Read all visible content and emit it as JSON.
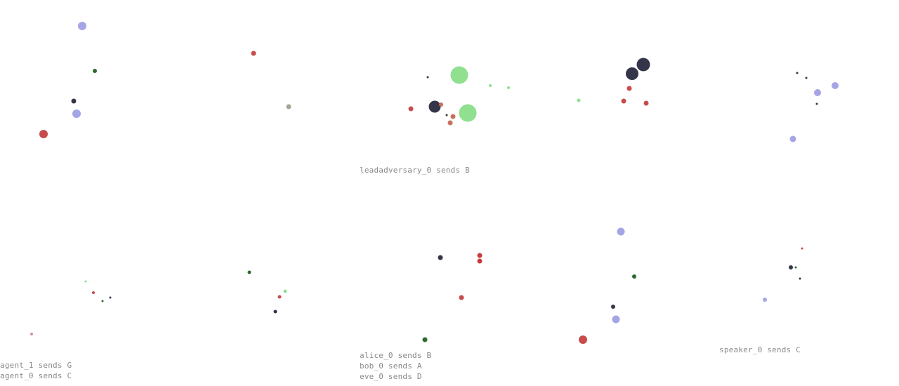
{
  "panels": [
    {
      "name": "panel-top-1",
      "messages": [],
      "entities": [
        {
          "kind": "agent",
          "color": "#a5a5e6"
        },
        {
          "kind": "landmark",
          "color": "#2e6b2e"
        },
        {
          "kind": "adversary",
          "color": "#35354a"
        },
        {
          "kind": "agent",
          "color": "#a5a5e6"
        },
        {
          "kind": "adversary",
          "color": "#c84c4c"
        }
      ]
    },
    {
      "name": "panel-top-2",
      "messages": [],
      "entities": [
        {
          "kind": "landmark",
          "color": "#c84c4c"
        },
        {
          "kind": "landmark",
          "color": "#a0a890"
        }
      ]
    },
    {
      "name": "panel-top-3",
      "messages": [
        "leadadversary_0 sends B"
      ],
      "entities": [
        {
          "kind": "landmark",
          "color": "#35354a"
        },
        {
          "kind": "food",
          "color": "#90e090"
        },
        {
          "kind": "food",
          "color": "#90e090"
        },
        {
          "kind": "food",
          "color": "#90e090"
        },
        {
          "kind": "adversary",
          "color": "#c84c4c"
        },
        {
          "kind": "adversary",
          "color": "#35354a"
        },
        {
          "kind": "agent",
          "color": "#c8705a"
        },
        {
          "kind": "landmark",
          "color": "#35354a"
        },
        {
          "kind": "agent",
          "color": "#c8705a"
        },
        {
          "kind": "agent",
          "color": "#c8705a"
        },
        {
          "kind": "food",
          "color": "#90e090"
        }
      ]
    },
    {
      "name": "panel-top-4",
      "messages": [],
      "entities": [
        {
          "kind": "adversary",
          "color": "#35354a"
        },
        {
          "kind": "adversary",
          "color": "#35354a"
        },
        {
          "kind": "agent",
          "color": "#c84c4c"
        },
        {
          "kind": "food",
          "color": "#90e090"
        },
        {
          "kind": "agent",
          "color": "#c84c4c"
        },
        {
          "kind": "agent",
          "color": "#c84c4c"
        }
      ]
    },
    {
      "name": "panel-top-5",
      "messages": [],
      "entities": [
        {
          "kind": "landmark",
          "color": "#35354a"
        },
        {
          "kind": "landmark",
          "color": "#35354a"
        },
        {
          "kind": "agent",
          "color": "#a5a5e6"
        },
        {
          "kind": "agent",
          "color": "#a5a5e6"
        },
        {
          "kind": "landmark",
          "color": "#35354a"
        },
        {
          "kind": "agent",
          "color": "#a5a5e6"
        }
      ]
    },
    {
      "name": "panel-bottom-1",
      "messages": [
        "agent_1 sends G",
        "agent_0 sends C"
      ],
      "entities": [
        {
          "kind": "landmark",
          "color": "#90e090"
        },
        {
          "kind": "agent",
          "color": "#c84c4c"
        },
        {
          "kind": "landmark",
          "color": "#35354a"
        },
        {
          "kind": "landmark",
          "color": "#2e6b2e"
        },
        {
          "kind": "agent",
          "color": "#d090a0"
        }
      ]
    },
    {
      "name": "panel-bottom-2",
      "messages": [],
      "entities": [
        {
          "kind": "landmark",
          "color": "#2e6b2e"
        },
        {
          "kind": "landmark",
          "color": "#90e090"
        },
        {
          "kind": "agent",
          "color": "#c84c4c"
        },
        {
          "kind": "agent",
          "color": "#35354a"
        }
      ]
    },
    {
      "name": "panel-bottom-3",
      "messages": [
        "alice_0 sends B",
        "bob_0 sends A",
        "eve_0 sends D"
      ],
      "entities": [
        {
          "kind": "agent",
          "color": "#c83c3c"
        },
        {
          "kind": "agent",
          "color": "#c83c3c"
        },
        {
          "kind": "agent",
          "color": "#35354a"
        },
        {
          "kind": "agent",
          "color": "#c84c4c"
        },
        {
          "kind": "landmark",
          "color": "#2e6b2e"
        }
      ]
    },
    {
      "name": "panel-bottom-4",
      "messages": [],
      "entities": [
        {
          "kind": "agent",
          "color": "#a5a5e6"
        },
        {
          "kind": "landmark",
          "color": "#2e6b2e"
        },
        {
          "kind": "adversary",
          "color": "#35354a"
        },
        {
          "kind": "agent",
          "color": "#a5a5e6"
        },
        {
          "kind": "landmark",
          "color": "#c84c4c"
        }
      ]
    },
    {
      "name": "panel-bottom-5",
      "messages": [
        "speaker_0 sends C"
      ],
      "entities": [
        {
          "kind": "landmark",
          "color": "#c84c4c"
        },
        {
          "kind": "agent",
          "color": "#35354a"
        },
        {
          "kind": "landmark",
          "color": "#2e6b2e"
        },
        {
          "kind": "landmark",
          "color": "#35354a"
        },
        {
          "kind": "agent",
          "color": "#a5a5e6"
        }
      ]
    }
  ]
}
